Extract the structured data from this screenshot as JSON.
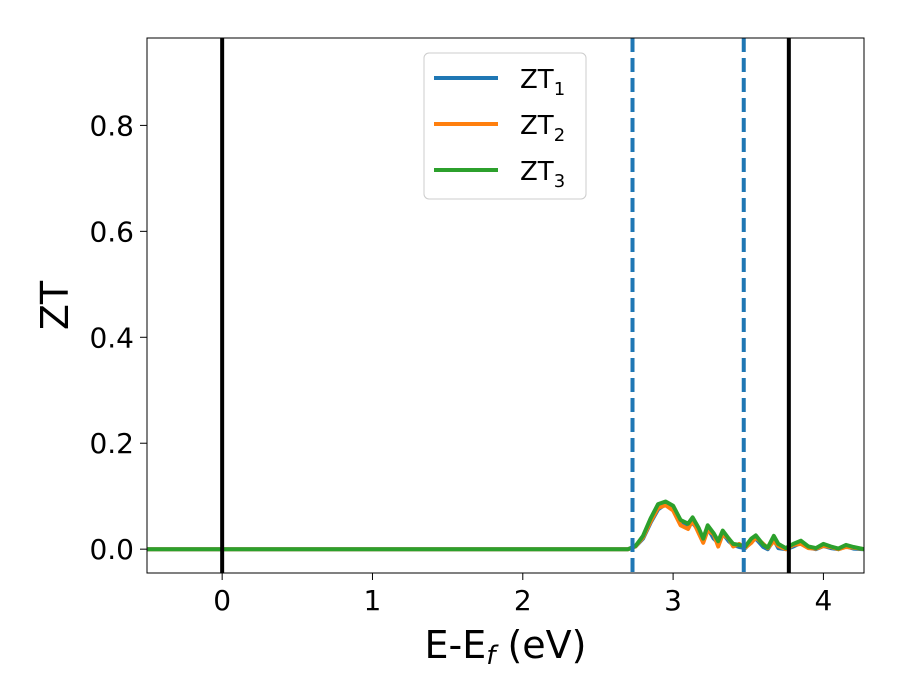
{
  "chart_data": {
    "type": "line",
    "title": "",
    "xlabel": {
      "base": "E-E",
      "sub": "f",
      "suffix": " (eV)"
    },
    "ylabel": "ZT",
    "xlim": [
      -0.5,
      4.27
    ],
    "ylim": [
      -0.045,
      0.965
    ],
    "xticks": [
      0,
      1,
      2,
      3,
      4
    ],
    "xtick_labels": [
      "0",
      "1",
      "2",
      "3",
      "4"
    ],
    "yticks": [
      0.0,
      0.2,
      0.4,
      0.6,
      0.8
    ],
    "ytick_labels": [
      "0.0",
      "0.2",
      "0.4",
      "0.6",
      "0.8"
    ],
    "grid": false,
    "legend_position": "top-center",
    "vlines": [
      {
        "x": 0.0,
        "style": "solid",
        "color": "#000000"
      },
      {
        "x": 3.77,
        "style": "solid",
        "color": "#000000"
      },
      {
        "x": 2.73,
        "style": "dashed",
        "color": "#1f77b4"
      },
      {
        "x": 3.47,
        "style": "dashed",
        "color": "#1f77b4"
      }
    ],
    "series": [
      {
        "name_base": "ZT",
        "name_sub": "1",
        "color": "#1f77b4",
        "x": [
          -0.5,
          2.7,
          2.75,
          2.8,
          2.85,
          2.9,
          2.95,
          3.0,
          3.05,
          3.1,
          3.13,
          3.17,
          3.2,
          3.23,
          3.27,
          3.3,
          3.33,
          3.37,
          3.4,
          3.44,
          3.48,
          3.52,
          3.55,
          3.6,
          3.63,
          3.67,
          3.7,
          3.75,
          3.8,
          3.85,
          3.9,
          3.95,
          4.0,
          4.05,
          4.1,
          4.15,
          4.2,
          4.27
        ],
        "y": [
          0.0,
          0.0,
          0.005,
          0.02,
          0.05,
          0.075,
          0.085,
          0.078,
          0.05,
          0.043,
          0.05,
          0.035,
          0.018,
          0.04,
          0.02,
          0.012,
          0.03,
          0.015,
          0.008,
          0.004,
          0.002,
          0.015,
          0.02,
          0.004,
          0.0,
          0.018,
          0.002,
          0.0,
          0.005,
          0.012,
          0.003,
          0.0,
          0.006,
          0.002,
          0.0,
          0.005,
          0.001,
          0.0
        ]
      },
      {
        "name_base": "ZT",
        "name_sub": "2",
        "color": "#ff7f0e",
        "x": [
          -0.5,
          2.7,
          2.75,
          2.8,
          2.85,
          2.9,
          2.95,
          3.0,
          3.05,
          3.1,
          3.13,
          3.17,
          3.2,
          3.23,
          3.27,
          3.3,
          3.33,
          3.37,
          3.4,
          3.44,
          3.48,
          3.52,
          3.55,
          3.6,
          3.63,
          3.67,
          3.7,
          3.75,
          3.8,
          3.85,
          3.9,
          3.95,
          4.0,
          4.05,
          4.1,
          4.15,
          4.2,
          4.27
        ],
        "y": [
          0.0,
          0.0,
          0.005,
          0.022,
          0.052,
          0.078,
          0.083,
          0.073,
          0.045,
          0.038,
          0.055,
          0.03,
          0.012,
          0.036,
          0.028,
          0.005,
          0.028,
          0.02,
          0.005,
          0.01,
          0.003,
          0.012,
          0.022,
          0.01,
          0.002,
          0.015,
          0.006,
          0.0,
          0.008,
          0.01,
          0.002,
          0.001,
          0.006,
          0.004,
          0.0,
          0.004,
          0.003,
          0.0
        ]
      },
      {
        "name_base": "ZT",
        "name_sub": "3",
        "color": "#2ca02c",
        "x": [
          -0.5,
          2.7,
          2.75,
          2.8,
          2.85,
          2.9,
          2.95,
          3.0,
          3.05,
          3.1,
          3.13,
          3.17,
          3.2,
          3.23,
          3.27,
          3.3,
          3.33,
          3.37,
          3.4,
          3.44,
          3.48,
          3.52,
          3.55,
          3.6,
          3.63,
          3.67,
          3.7,
          3.75,
          3.8,
          3.85,
          3.9,
          3.95,
          4.0,
          4.05,
          4.1,
          4.15,
          4.2,
          4.27
        ],
        "y": [
          0.0,
          0.0,
          0.006,
          0.025,
          0.058,
          0.085,
          0.09,
          0.082,
          0.055,
          0.048,
          0.06,
          0.04,
          0.02,
          0.045,
          0.03,
          0.015,
          0.035,
          0.02,
          0.01,
          0.008,
          0.005,
          0.02,
          0.026,
          0.008,
          0.003,
          0.025,
          0.01,
          0.002,
          0.01,
          0.016,
          0.005,
          0.002,
          0.01,
          0.005,
          0.001,
          0.008,
          0.004,
          0.0
        ]
      }
    ]
  }
}
